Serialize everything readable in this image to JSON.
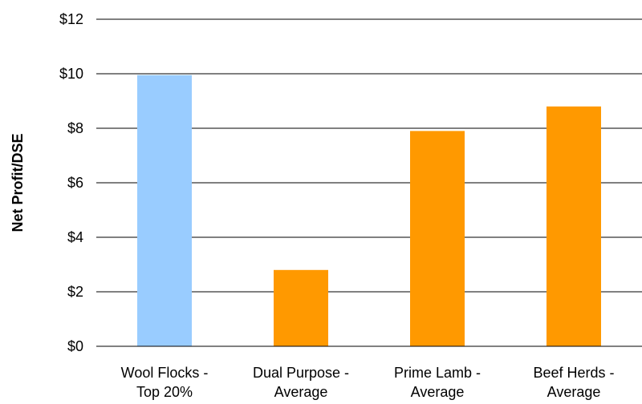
{
  "chart_data": {
    "type": "bar",
    "title": "",
    "xlabel": "",
    "ylabel": "Net Profit/DSE",
    "categories": [
      [
        "Wool Flocks -",
        "Top 20%"
      ],
      [
        "Dual Purpose -",
        "Average"
      ],
      [
        "Prime Lamb -",
        "Average"
      ],
      [
        "Beef Herds -",
        "Average"
      ]
    ],
    "values": [
      9.95,
      2.8,
      7.9,
      8.8
    ],
    "bar_colors": [
      "#99CCFF",
      "#FF9900",
      "#FF9900",
      "#FF9900"
    ],
    "ylim": [
      0,
      12
    ],
    "yticks": [
      0,
      2,
      4,
      6,
      8,
      10,
      12
    ],
    "ytick_labels": [
      "$0",
      "$2",
      "$4",
      "$6",
      "$8",
      "$10",
      "$12"
    ],
    "grid": true,
    "legend": "none"
  }
}
